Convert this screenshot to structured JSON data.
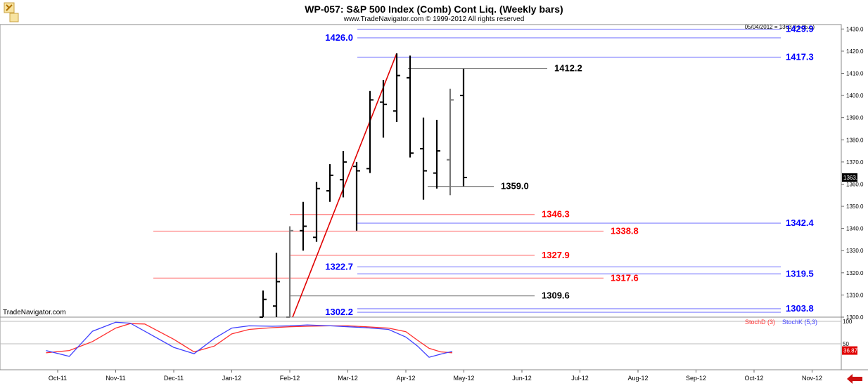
{
  "window": {
    "title": "WP-057:  S&P 500 Index (Comb) Cont Liq.  (Weekly bars)",
    "copyright": "www.TradeNavigator.com © 1999-2012 All rights reserved",
    "status_line": "05/04/2012 = 1363.0 (-35.5)",
    "watermark": "TradeNavigator.com",
    "ui_icons": [
      "tool-icon-left",
      "tool-icon-right",
      "back-arrow-icon"
    ]
  },
  "chart_data": [
    {
      "type": "ohlc",
      "title": "WP-057:  S&P 500 Index (Comb) Cont Liq.  (Weekly bars)",
      "ylim": [
        1300,
        1432
      ],
      "yticks": [
        1300.0,
        1310.0,
        1320.0,
        1330.0,
        1340.0,
        1350.0,
        1360.0,
        1370.0,
        1380.0,
        1390.0,
        1400.0,
        1410.0,
        1420.0,
        1430.0
      ],
      "last_price_label": "1363.0",
      "months": [
        "Oct-11",
        "Nov-11",
        "Dec-11",
        "Jan-12",
        "Feb-12",
        "Mar-12",
        "Apr-12",
        "May-12",
        "Jun-12",
        "Jul-12",
        "Aug-12",
        "Sep-12",
        "Oct-12",
        "Nov-12"
      ],
      "bars": [
        {
          "week": 0,
          "open": 1300,
          "high": 1312,
          "low": 1300,
          "close": 1308
        },
        {
          "week": 1,
          "open": 1305,
          "high": 1329,
          "low": 1300,
          "close": 1316
        },
        {
          "week": 2,
          "open": 1300,
          "high": 1341,
          "low": 1300,
          "close": 1339
        },
        {
          "week": 3,
          "open": 1339,
          "high": 1352,
          "low": 1330,
          "close": 1341
        },
        {
          "week": 4,
          "open": 1336,
          "high": 1361,
          "low": 1334,
          "close": 1358
        },
        {
          "week": 5,
          "open": 1357,
          "high": 1369,
          "low": 1352,
          "close": 1364
        },
        {
          "week": 6,
          "open": 1362,
          "high": 1375,
          "low": 1354,
          "close": 1370
        },
        {
          "week": 7,
          "open": 1368,
          "high": 1370,
          "low": 1339,
          "close": 1366
        },
        {
          "week": 8,
          "open": 1367,
          "high": 1402,
          "low": 1365,
          "close": 1398
        },
        {
          "week": 9,
          "open": 1397,
          "high": 1407,
          "low": 1381,
          "close": 1396
        },
        {
          "week": 10,
          "open": 1393,
          "high": 1419,
          "low": 1388,
          "close": 1409
        },
        {
          "week": 11,
          "open": 1408,
          "high": 1418,
          "low": 1372,
          "close": 1374
        },
        {
          "week": 12,
          "open": 1376,
          "high": 1390,
          "low": 1353,
          "close": 1366
        },
        {
          "week": 13,
          "open": 1365,
          "high": 1389,
          "low": 1358,
          "close": 1375
        },
        {
          "week": 14,
          "open": 1371,
          "high": 1403,
          "low": 1355,
          "close": 1398
        },
        {
          "week": 15,
          "open": 1400,
          "high": 1412,
          "low": 1359,
          "close": 1363
        }
      ],
      "trendline": {
        "from": {
          "week": 2,
          "price": 1300
        },
        "to": {
          "week": 10,
          "price": 1419
        },
        "color": "#e00000"
      },
      "levels": [
        {
          "value": 1426.0,
          "label": "1426.0",
          "color": "#0000ff",
          "line": "#8080ff",
          "label_side": "left"
        },
        {
          "value": 1429.9,
          "label": "1429.9",
          "color": "#0000ff",
          "line": "#8080ff",
          "label_side": "right"
        },
        {
          "value": 1417.3,
          "label": "1417.3",
          "color": "#0000ff",
          "line": "#8080ff",
          "label_side": "right"
        },
        {
          "value": 1412.2,
          "label": "1412.2",
          "color": "#000000",
          "line": "#808080",
          "label_side": "end"
        },
        {
          "value": 1359.0,
          "label": "1359.0",
          "color": "#000000",
          "line": "#808080",
          "label_side": "end"
        },
        {
          "value": 1346.3,
          "label": "1346.3",
          "color": "#ff0000",
          "line": "#ff8080",
          "label_side": "end"
        },
        {
          "value": 1342.4,
          "label": "1342.4",
          "color": "#0000ff",
          "line": "#8080ff",
          "label_side": "right"
        },
        {
          "value": 1338.8,
          "label": "1338.8",
          "color": "#ff0000",
          "line": "#ff8080",
          "label_side": "end"
        },
        {
          "value": 1327.9,
          "label": "1327.9",
          "color": "#ff0000",
          "line": "#ff8080",
          "label_side": "end"
        },
        {
          "value": 1322.7,
          "label": "1322.7",
          "color": "#0000ff",
          "line": "#8080ff",
          "label_side": "left"
        },
        {
          "value": 1319.5,
          "label": "1319.5",
          "color": "#0000ff",
          "line": "#8080ff",
          "label_side": "right"
        },
        {
          "value": 1317.6,
          "label": "1317.6",
          "color": "#ff0000",
          "line": "#ff8080",
          "label_side": "end"
        },
        {
          "value": 1309.6,
          "label": "1309.6",
          "color": "#000000",
          "line": "#808080",
          "label_side": "end"
        },
        {
          "value": 1303.8,
          "label": "1303.8",
          "color": "#0000ff",
          "line": "#8080ff",
          "label_side": "right"
        },
        {
          "value": 1302.2,
          "label": "1302.2",
          "color": "#0000ff",
          "line": "#8080ff",
          "label_side": "left"
        }
      ]
    },
    {
      "type": "line",
      "ylim": [
        0,
        100
      ],
      "yticks": [
        "100",
        "50"
      ],
      "last_value_label": "36.87",
      "legend": [
        "StochD (3)",
        "StochK (5,3)"
      ],
      "x_months": [
        -0.2,
        0.2,
        0.6,
        1.0,
        1.25,
        1.5,
        2.0,
        2.35,
        2.7,
        3.0,
        3.3,
        3.7,
        4.0,
        4.3,
        4.7,
        5.0,
        5.3,
        5.7,
        6.0,
        6.2,
        6.4,
        6.6,
        6.8
      ],
      "series": [
        {
          "name": "StochD (3)",
          "color": "#ff3030",
          "values": [
            30,
            35,
            55,
            85,
            95,
            94,
            60,
            32,
            45,
            72,
            82,
            86,
            88,
            89,
            90,
            90,
            88,
            85,
            77,
            58,
            40,
            32,
            30
          ]
        },
        {
          "name": "StochK (5,3)",
          "color": "#4040ff",
          "values": [
            35,
            22,
            78,
            98,
            96,
            78,
            42,
            28,
            62,
            85,
            90,
            89,
            90,
            92,
            90,
            88,
            86,
            82,
            65,
            45,
            20,
            27,
            33
          ]
        }
      ]
    }
  ]
}
